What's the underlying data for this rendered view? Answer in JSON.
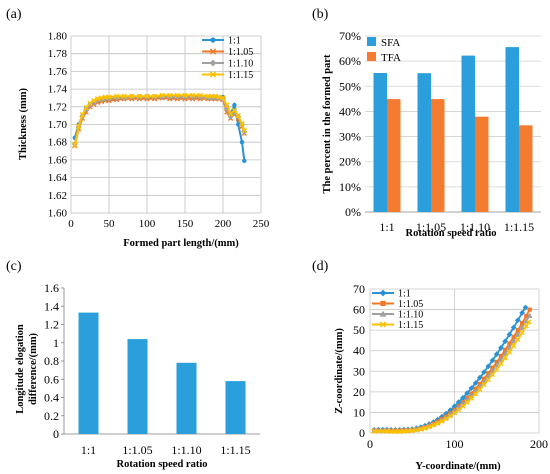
{
  "panels": [
    {
      "letter": "(a)",
      "chart_data": {
        "type": "line",
        "xlabel": "Formed part length/(mm)",
        "ylabel": "Thickness (mm)",
        "xlim": [
          0,
          250
        ],
        "ylim": [
          1.6,
          1.8
        ],
        "xticks": [
          "0",
          "50",
          "100",
          "150",
          "200",
          "250"
        ],
        "yticks": [
          "1.60",
          "1.62",
          "1.64",
          "1.66",
          "1.68",
          "1.70",
          "1.72",
          "1.74",
          "1.76",
          "1.78",
          "1.80"
        ],
        "grid": true,
        "legend_position": "top-right",
        "x": [
          5,
          10,
          15,
          20,
          25,
          30,
          35,
          40,
          45,
          50,
          60,
          70,
          80,
          90,
          100,
          110,
          120,
          130,
          140,
          150,
          160,
          170,
          180,
          185,
          190,
          195,
          200,
          205,
          210,
          215,
          220,
          225,
          228
        ],
        "series": [
          {
            "name": "1:1",
            "color": "#2a93d5",
            "marker": "circle",
            "values": [
              1.685,
              1.7,
              1.71,
              1.718,
              1.723,
              1.726,
              1.727,
              1.728,
              1.729,
              1.729,
              1.73,
              1.73,
              1.731,
              1.731,
              1.731,
              1.731,
              1.731,
              1.731,
              1.731,
              1.731,
              1.731,
              1.731,
              1.731,
              1.731,
              1.73,
              1.73,
              1.731,
              1.72,
              1.712,
              1.722,
              1.7,
              1.68,
              1.659
            ]
          },
          {
            "name": "1:1.05",
            "color": "#f07828",
            "marker": "x",
            "values": [
              1.676,
              1.695,
              1.707,
              1.714,
              1.72,
              1.723,
              1.725,
              1.726,
              1.727,
              1.727,
              1.728,
              1.729,
              1.729,
              1.729,
              1.729,
              1.729,
              1.73,
              1.729,
              1.729,
              1.729,
              1.729,
              1.729,
              1.729,
              1.729,
              1.729,
              1.729,
              1.728,
              1.714,
              1.707,
              1.712,
              1.707,
              1.698,
              1.69
            ]
          },
          {
            "name": "1:1.10",
            "color": "#a0a0a0",
            "marker": "diamond",
            "values": [
              1.678,
              1.697,
              1.709,
              1.717,
              1.722,
              1.725,
              1.727,
              1.728,
              1.729,
              1.729,
              1.73,
              1.73,
              1.731,
              1.731,
              1.731,
              1.731,
              1.731,
              1.731,
              1.731,
              1.731,
              1.731,
              1.731,
              1.73,
              1.73,
              1.73,
              1.73,
              1.729,
              1.718,
              1.709,
              1.714,
              1.709,
              1.7,
              1.692
            ]
          },
          {
            "name": "1:1.15",
            "color": "#ffc000",
            "marker": "x",
            "values": [
              1.677,
              1.698,
              1.711,
              1.719,
              1.724,
              1.727,
              1.729,
              1.73,
              1.731,
              1.731,
              1.732,
              1.732,
              1.732,
              1.732,
              1.732,
              1.732,
              1.733,
              1.733,
              1.733,
              1.733,
              1.733,
              1.733,
              1.732,
              1.732,
              1.732,
              1.731,
              1.73,
              1.722,
              1.712,
              1.716,
              1.71,
              1.701,
              1.693
            ]
          }
        ]
      }
    },
    {
      "letter": "(b)",
      "chart_data": {
        "type": "bar",
        "xlabel": "Rotation speed ratio",
        "ylabel": "The percent in the formed part",
        "categories": [
          "1:1",
          "1:1.05",
          "1:1.10",
          "1:1.15"
        ],
        "ylim": [
          0,
          70
        ],
        "yticks": [
          "0%",
          "10%",
          "20%",
          "30%",
          "40%",
          "50%",
          "60%",
          "70%"
        ],
        "grid": true,
        "legend_position": "top-left",
        "series": [
          {
            "name": "SFA",
            "color": "#2a9fdc",
            "values": [
              55.3,
              55.2,
              62.2,
              65.6
            ]
          },
          {
            "name": "TFA",
            "color": "#f47c30",
            "values": [
              44.9,
              44.9,
              37.9,
              34.5
            ]
          }
        ]
      }
    },
    {
      "letter": "(c)",
      "chart_data": {
        "type": "bar",
        "xlabel": "Rotation speed ratio",
        "ylabel": "Longitude elogation difference/(mm)",
        "ylabel_lines": [
          "Longitude elogation",
          "difference/(mm)"
        ],
        "categories": [
          "1:1",
          "1:1.05",
          "1:1.10",
          "1:1.15"
        ],
        "ylim": [
          0,
          1.6
        ],
        "yticks": [
          "0",
          "0.2",
          "0.4",
          "0.6",
          "0.8",
          "1",
          "1.2",
          "1.4",
          "1.6"
        ],
        "grid": false,
        "series": [
          {
            "color": "#2a9fdc",
            "values": [
              1.33,
              1.04,
              0.78,
              0.58
            ]
          }
        ]
      }
    },
    {
      "letter": "(d)",
      "chart_data": {
        "type": "line",
        "xlabel": "Y-coordinate/(mm)",
        "ylabel": "Z-coordinate/(mm)",
        "xlim": [
          0,
          200
        ],
        "ylim": [
          0,
          70
        ],
        "xticks": [
          "0",
          "100",
          "200"
        ],
        "yticks": [
          "0",
          "10",
          "20",
          "30",
          "40",
          "50",
          "60",
          "70"
        ],
        "grid": true,
        "legend_position": "top-left",
        "series": [
          {
            "name": "1:1",
            "color": "#2a93d5",
            "marker": "diamond",
            "x": [
              5,
              10,
              15,
              20,
              25,
              30,
              35,
              40,
              45,
              50,
              55,
              60,
              65,
              70,
              75,
              80,
              85,
              90,
              95,
              100,
              105,
              110,
              115,
              120,
              125,
              130,
              135,
              140,
              145,
              150,
              155,
              160,
              165,
              170,
              175,
              180,
              184
            ],
            "y": [
              1.5,
              1.6,
              1.6,
              1.6,
              1.5,
              1.5,
              1.5,
              1.6,
              1.7,
              1.9,
              2.3,
              2.8,
              3.5,
              4.3,
              5.3,
              6.5,
              7.9,
              9.4,
              11.1,
              13.0,
              15.0,
              17.1,
              19.4,
              21.8,
              24.3,
              26.9,
              29.6,
              32.4,
              35.3,
              38.3,
              41.4,
              44.6,
              47.9,
              51.3,
              54.8,
              58.4,
              61.0
            ]
          },
          {
            "name": "1:1.05",
            "color": "#f07828",
            "marker": "square",
            "x": [
              5,
              10,
              15,
              20,
              25,
              30,
              35,
              40,
              45,
              50,
              55,
              60,
              65,
              70,
              75,
              80,
              85,
              90,
              95,
              100,
              105,
              110,
              115,
              120,
              125,
              130,
              135,
              140,
              145,
              150,
              155,
              160,
              165,
              170,
              175,
              180,
              185,
              189
            ],
            "y": [
              1.2,
              1.2,
              1.2,
              1.2,
              1.1,
              1.1,
              1.1,
              1.2,
              1.3,
              1.5,
              1.8,
              2.3,
              2.9,
              3.6,
              4.5,
              5.5,
              6.7,
              8.0,
              9.5,
              11.2,
              13.0,
              14.9,
              17.0,
              19.2,
              21.5,
              23.9,
              26.4,
              29.0,
              31.7,
              34.5,
              37.4,
              40.4,
              43.5,
              46.7,
              50.0,
              53.4,
              56.9,
              60.0
            ]
          },
          {
            "name": "1:1.10",
            "color": "#a0a0a0",
            "marker": "triangle",
            "x": [
              5,
              10,
              15,
              20,
              25,
              30,
              35,
              40,
              45,
              50,
              55,
              60,
              65,
              70,
              75,
              80,
              85,
              90,
              95,
              100,
              105,
              110,
              115,
              120,
              125,
              130,
              135,
              140,
              145,
              150,
              155,
              160,
              165,
              170,
              175,
              180,
              185,
              189
            ],
            "y": [
              1.0,
              1.0,
              1.0,
              1.0,
              0.9,
              0.9,
              0.9,
              1.0,
              1.1,
              1.3,
              1.6,
              2.0,
              2.6,
              3.3,
              4.1,
              5.1,
              6.2,
              7.5,
              8.9,
              10.5,
              12.2,
              14.0,
              16.0,
              18.1,
              20.3,
              22.6,
              25.0,
              27.5,
              30.1,
              32.8,
              35.6,
              38.5,
              41.5,
              44.6,
              47.8,
              51.1,
              54.5,
              57.0
            ]
          },
          {
            "name": "1:1.15",
            "color": "#ffc000",
            "marker": "x",
            "x": [
              5,
              10,
              15,
              20,
              25,
              30,
              35,
              40,
              45,
              50,
              55,
              60,
              65,
              70,
              75,
              80,
              85,
              90,
              95,
              100,
              105,
              110,
              115,
              120,
              125,
              130,
              135,
              140,
              145,
              150,
              155,
              160,
              165,
              170,
              175,
              180,
              185,
              188
            ],
            "y": [
              0.8,
              0.8,
              0.8,
              0.8,
              0.7,
              0.7,
              0.7,
              0.8,
              0.9,
              1.1,
              1.4,
              1.8,
              2.3,
              3.0,
              3.8,
              4.7,
              5.7,
              6.9,
              8.2,
              9.7,
              11.3,
              13.0,
              14.9,
              16.9,
              19.0,
              21.2,
              23.5,
              25.9,
              28.4,
              31.0,
              33.7,
              36.5,
              39.4,
              42.4,
              45.5,
              48.7,
              52.0,
              54.0
            ]
          }
        ]
      }
    }
  ]
}
